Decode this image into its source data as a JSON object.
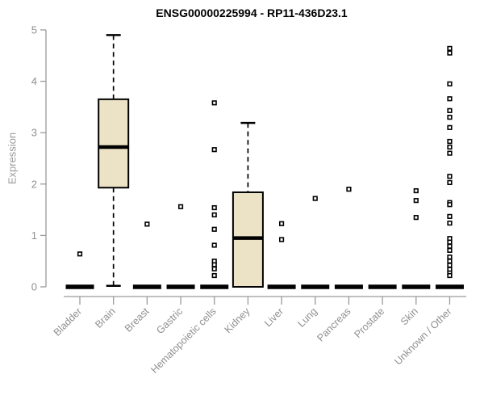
{
  "chart_data": {
    "type": "boxplot",
    "title": "ENSG00000225994 - RP11-436D23.1",
    "xlabel": "",
    "ylabel": "Expression",
    "ylim": [
      0,
      5
    ],
    "yticks": [
      0,
      1,
      2,
      3,
      4,
      5
    ],
    "grid": false,
    "legend": null,
    "colors": {
      "box_fill": "#ece3c6",
      "box_stroke": "#000000",
      "median": "#000000",
      "whisker": "#000000",
      "outlier": "#000000",
      "axis_line": "#9a9a9a",
      "tick_label": "#8f8f8f",
      "title": "#000000"
    },
    "categories": [
      "Bladder",
      "Brain",
      "Breast",
      "Gastric",
      "Hematopoietic cells",
      "Kidney",
      "Liver",
      "Lung",
      "Pancreas",
      "Prostate",
      "Skin",
      "Unknown / Other"
    ],
    "boxes": [
      {
        "category": "Bladder",
        "q1": 0,
        "median": 0,
        "q3": 0,
        "whisker_low": 0,
        "whisker_high": 0,
        "outliers": [
          0.64
        ]
      },
      {
        "category": "Brain",
        "q1": 1.93,
        "median": 2.72,
        "q3": 3.65,
        "whisker_low": 0.02,
        "whisker_high": 4.9,
        "outliers": []
      },
      {
        "category": "Breast",
        "q1": 0,
        "median": 0,
        "q3": 0,
        "whisker_low": 0,
        "whisker_high": 0,
        "outliers": [
          1.22
        ]
      },
      {
        "category": "Gastric",
        "q1": 0,
        "median": 0,
        "q3": 0,
        "whisker_low": 0,
        "whisker_high": 0,
        "outliers": [
          1.56
        ]
      },
      {
        "category": "Hematopoietic cells",
        "q1": 0,
        "median": 0,
        "q3": 0,
        "whisker_low": 0,
        "whisker_high": 0,
        "outliers": [
          3.58,
          2.67,
          1.54,
          1.4,
          1.12,
          0.81,
          0.5,
          0.43,
          0.35,
          0.22
        ]
      },
      {
        "category": "Kidney",
        "q1": 0,
        "median": 0.95,
        "q3": 1.84,
        "whisker_low": 0,
        "whisker_high": 3.19,
        "outliers": []
      },
      {
        "category": "Liver",
        "q1": 0,
        "median": 0,
        "q3": 0,
        "whisker_low": 0,
        "whisker_high": 0,
        "outliers": [
          1.23,
          0.92
        ]
      },
      {
        "category": "Lung",
        "q1": 0,
        "median": 0,
        "q3": 0,
        "whisker_low": 0,
        "whisker_high": 0,
        "outliers": [
          1.72
        ]
      },
      {
        "category": "Pancreas",
        "q1": 0,
        "median": 0,
        "q3": 0,
        "whisker_low": 0,
        "whisker_high": 0,
        "outliers": [
          1.9
        ]
      },
      {
        "category": "Prostate",
        "q1": 0,
        "median": 0,
        "q3": 0,
        "whisker_low": 0,
        "whisker_high": 0,
        "outliers": []
      },
      {
        "category": "Skin",
        "q1": 0,
        "median": 0,
        "q3": 0,
        "whisker_low": 0,
        "whisker_high": 0,
        "outliers": [
          1.87,
          1.68,
          1.35
        ]
      },
      {
        "category": "Unknown / Other",
        "q1": 0,
        "median": 0,
        "q3": 0,
        "whisker_low": 0,
        "whisker_high": 0,
        "outliers": [
          4.64,
          4.55,
          3.95,
          3.66,
          3.43,
          3.3,
          3.1,
          2.83,
          2.72,
          2.6,
          2.15,
          2.03,
          1.64,
          1.6,
          1.37,
          1.24,
          0.94,
          0.87,
          0.79,
          0.71,
          0.58,
          0.5,
          0.42,
          0.34,
          0.27,
          0.22
        ]
      }
    ]
  }
}
